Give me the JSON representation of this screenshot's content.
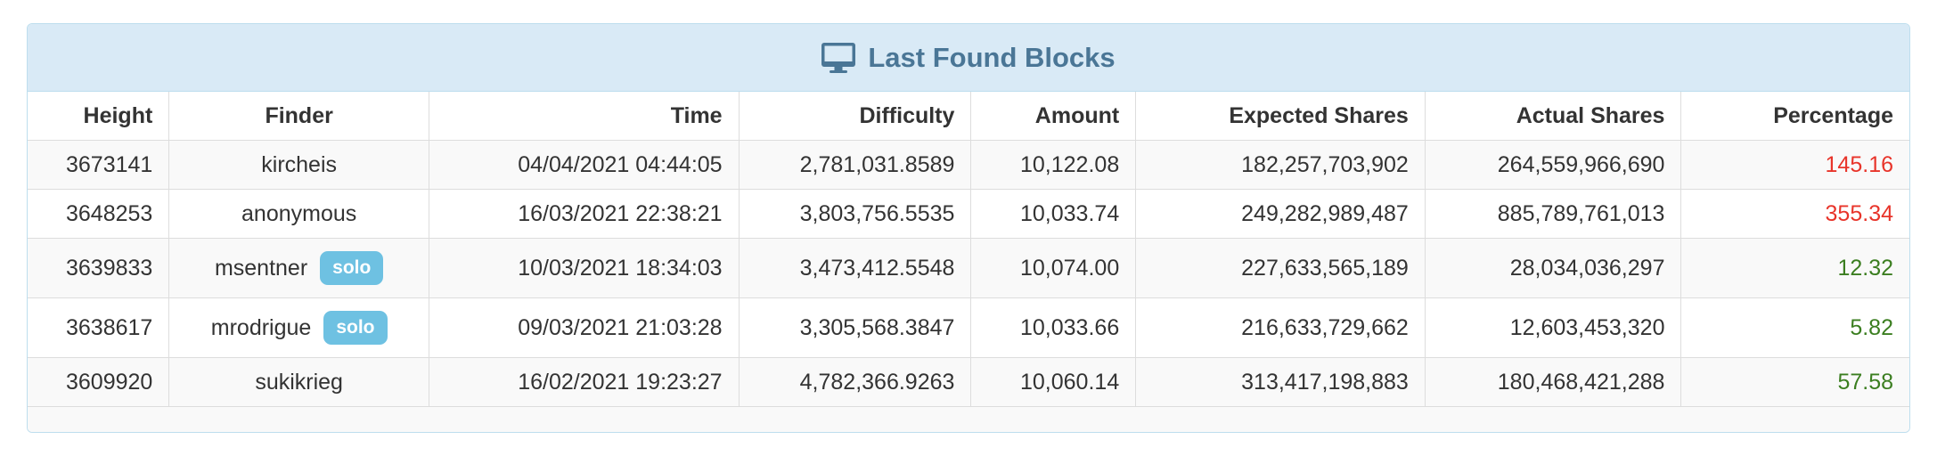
{
  "panel": {
    "title": "Last Found Blocks",
    "icon": "monitor-icon"
  },
  "table": {
    "solo_badge_label": "solo",
    "columns": [
      {
        "key": "height",
        "label": "Height",
        "align": "right",
        "width_pct": 7.52
      },
      {
        "key": "finder",
        "label": "Finder",
        "align": "center",
        "width_pct": 13.81
      },
      {
        "key": "time",
        "label": "Time",
        "align": "right",
        "width_pct": 16.46
      },
      {
        "key": "difficulty",
        "label": "Difficulty",
        "align": "right",
        "width_pct": 12.35
      },
      {
        "key": "amount",
        "label": "Amount",
        "align": "right",
        "width_pct": 8.75
      },
      {
        "key": "expected_shares",
        "label": "Expected Shares",
        "align": "right",
        "width_pct": 15.37
      },
      {
        "key": "actual_shares",
        "label": "Actual Shares",
        "align": "right",
        "width_pct": 13.62
      },
      {
        "key": "percentage",
        "label": "Percentage",
        "align": "right",
        "width_pct": 12.12
      }
    ],
    "rows": [
      {
        "height": "3673141",
        "finder": "kircheis",
        "solo": false,
        "time": "04/04/2021 04:44:05",
        "difficulty": "2,781,031.8589",
        "amount": "10,122.08",
        "expected_shares": "182,257,703,902",
        "actual_shares": "264,559,966,690",
        "percentage": "145.16",
        "percentage_status": "red"
      },
      {
        "height": "3648253",
        "finder": "anonymous",
        "solo": false,
        "time": "16/03/2021 22:38:21",
        "difficulty": "3,803,756.5535",
        "amount": "10,033.74",
        "expected_shares": "249,282,989,487",
        "actual_shares": "885,789,761,013",
        "percentage": "355.34",
        "percentage_status": "red"
      },
      {
        "height": "3639833",
        "finder": "msentner",
        "solo": true,
        "time": "10/03/2021 18:34:03",
        "difficulty": "3,473,412.5548",
        "amount": "10,074.00",
        "expected_shares": "227,633,565,189",
        "actual_shares": "28,034,036,297",
        "percentage": "12.32",
        "percentage_status": "green"
      },
      {
        "height": "3638617",
        "finder": "mrodrigue",
        "solo": true,
        "time": "09/03/2021 21:03:28",
        "difficulty": "3,305,568.3847",
        "amount": "10,033.66",
        "expected_shares": "216,633,729,662",
        "actual_shares": "12,603,453,320",
        "percentage": "5.82",
        "percentage_status": "green"
      },
      {
        "height": "3609920",
        "finder": "sukikrieg",
        "solo": false,
        "time": "16/02/2021 19:23:27",
        "difficulty": "4,782,366.9263",
        "amount": "10,060.14",
        "expected_shares": "313,417,198,883",
        "actual_shares": "180,468,421,288",
        "percentage": "57.58",
        "percentage_status": "green"
      }
    ]
  },
  "colors": {
    "header_bg": "#d9eaf6",
    "panel_border": "#bedeee",
    "title_color": "#4a7696",
    "badge_bg": "#6ec1e2",
    "percentage_red": "#e8342a",
    "percentage_green": "#3b7e20",
    "stripe_bg": "#f9f9f9",
    "grid_border": "#dddddd",
    "text_color": "#333333"
  }
}
